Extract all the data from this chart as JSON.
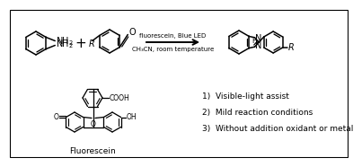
{
  "bg_color": "#ffffff",
  "text_color": "#000000",
  "arrow_text_top": "fluorescein, Blue LED",
  "arrow_text_bottom": "CH₃CN, room temperature",
  "conditions": [
    "1)  Visible-light assist",
    "2)  Mild reaction conditions",
    "3)  Without addition oxidant or metal"
  ],
  "fluorescein_label": "Fluorescein",
  "lw_main": 1.1,
  "lw_thin": 0.85,
  "fs_main": 7.0,
  "fs_small": 5.5,
  "fs_cond": 6.5
}
